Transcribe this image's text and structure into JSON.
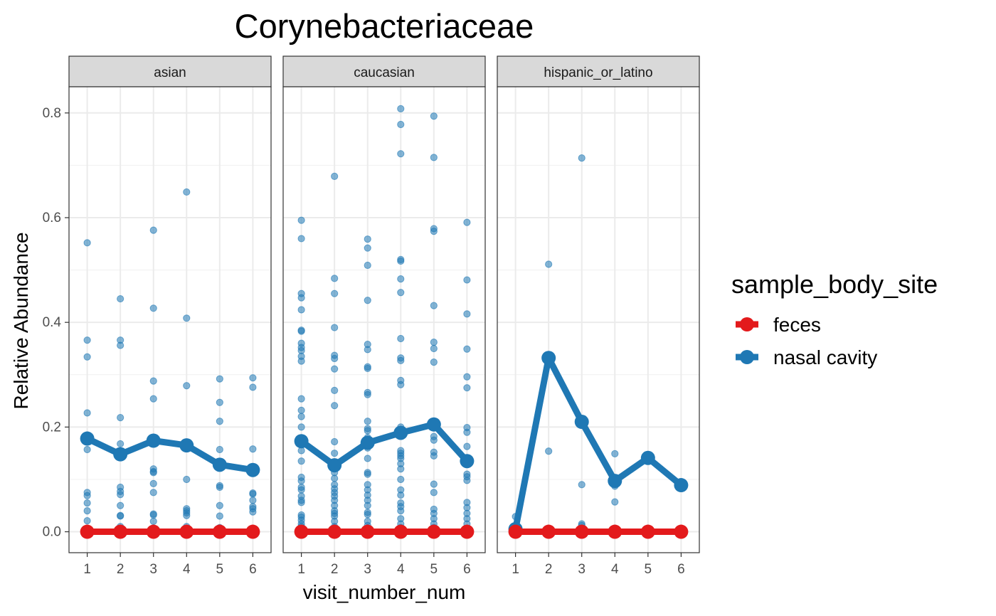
{
  "chart_data": {
    "type": "line",
    "title": "Corynebacteriaceae",
    "xlabel": "visit_number_num",
    "ylabel": "Relative Abundance",
    "x_ticks": [
      1,
      2,
      3,
      4,
      5,
      6
    ],
    "y_ticks": [
      "0.0",
      "0.2",
      "0.4",
      "0.6",
      "0.8"
    ],
    "ylim": [
      -0.04,
      0.85
    ],
    "xlim": [
      0.45,
      6.55
    ],
    "grid": true,
    "legend": {
      "title": "sample_body_site",
      "position": "right",
      "entries": [
        {
          "label": "feces",
          "color": "#E31A1C"
        },
        {
          "label": "nasal cavity",
          "color": "#1F78B4"
        }
      ]
    },
    "panels": [
      {
        "facet": "asian",
        "series": [
          {
            "name": "feces",
            "color": "#E31A1C",
            "x": [
              1,
              2,
              3,
              4,
              5,
              6
            ],
            "y": [
              0,
              0,
              0,
              0,
              0,
              0
            ]
          },
          {
            "name": "nasal cavity",
            "color": "#1F78B4",
            "x": [
              1,
              2,
              3,
              4,
              5,
              6
            ],
            "y": [
              0.178,
              0.148,
              0.174,
              0.165,
              0.128,
              0.118
            ]
          }
        ],
        "points": [
          [
            1,
            0.552
          ],
          [
            1,
            0.366
          ],
          [
            1,
            0.334
          ],
          [
            1,
            0.227
          ],
          [
            1,
            0.157
          ],
          [
            1,
            0.075
          ],
          [
            1,
            0.069
          ],
          [
            1,
            0.055
          ],
          [
            1,
            0.04
          ],
          [
            1,
            0.021
          ],
          [
            1,
            0.004
          ],
          [
            2,
            0.445
          ],
          [
            2,
            0.366
          ],
          [
            2,
            0.356
          ],
          [
            2,
            0.218
          ],
          [
            2,
            0.168
          ],
          [
            2,
            0.085
          ],
          [
            2,
            0.077
          ],
          [
            2,
            0.071
          ],
          [
            2,
            0.05
          ],
          [
            2,
            0.031
          ],
          [
            2,
            0.03
          ],
          [
            2,
            0.01
          ],
          [
            3,
            0.576
          ],
          [
            3,
            0.427
          ],
          [
            3,
            0.288
          ],
          [
            3,
            0.254
          ],
          [
            3,
            0.12
          ],
          [
            3,
            0.115
          ],
          [
            3,
            0.113
          ],
          [
            3,
            0.092
          ],
          [
            3,
            0.075
          ],
          [
            3,
            0.034
          ],
          [
            3,
            0.032
          ],
          [
            3,
            0.02
          ],
          [
            4,
            0.649
          ],
          [
            4,
            0.408
          ],
          [
            4,
            0.279
          ],
          [
            4,
            0.1
          ],
          [
            4,
            0.044
          ],
          [
            4,
            0.04
          ],
          [
            4,
            0.036
          ],
          [
            4,
            0.031
          ],
          [
            4,
            0.01
          ],
          [
            5,
            0.292
          ],
          [
            5,
            0.247
          ],
          [
            5,
            0.211
          ],
          [
            5,
            0.157
          ],
          [
            5,
            0.088
          ],
          [
            5,
            0.085
          ],
          [
            5,
            0.05
          ],
          [
            5,
            0.03
          ],
          [
            5,
            0.008
          ],
          [
            6,
            0.294
          ],
          [
            6,
            0.276
          ],
          [
            6,
            0.158
          ],
          [
            6,
            0.074
          ],
          [
            6,
            0.072
          ],
          [
            6,
            0.06
          ],
          [
            6,
            0.048
          ],
          [
            6,
            0.044
          ],
          [
            6,
            0.038
          ],
          [
            6,
            0.005
          ]
        ]
      },
      {
        "facet": "caucasian",
        "series": [
          {
            "name": "feces",
            "color": "#E31A1C",
            "x": [
              1,
              2,
              3,
              4,
              5,
              6
            ],
            "y": [
              0,
              0,
              0,
              0,
              0,
              0
            ]
          },
          {
            "name": "nasal cavity",
            "color": "#1F78B4",
            "x": [
              1,
              2,
              3,
              4,
              5,
              6
            ],
            "y": [
              0.173,
              0.127,
              0.17,
              0.189,
              0.205,
              0.135
            ]
          }
        ],
        "points": [
          [
            1,
            0.595
          ],
          [
            1,
            0.56
          ],
          [
            1,
            0.455
          ],
          [
            1,
            0.447
          ],
          [
            1,
            0.424
          ],
          [
            1,
            0.385
          ],
          [
            1,
            0.383
          ],
          [
            1,
            0.36
          ],
          [
            1,
            0.352
          ],
          [
            1,
            0.346
          ],
          [
            1,
            0.335
          ],
          [
            1,
            0.326
          ],
          [
            1,
            0.254
          ],
          [
            1,
            0.232
          ],
          [
            1,
            0.22
          ],
          [
            1,
            0.2
          ],
          [
            1,
            0.172
          ],
          [
            1,
            0.155
          ],
          [
            1,
            0.135
          ],
          [
            1,
            0.104
          ],
          [
            1,
            0.097
          ],
          [
            1,
            0.085
          ],
          [
            1,
            0.08
          ],
          [
            1,
            0.068
          ],
          [
            1,
            0.06
          ],
          [
            1,
            0.056
          ],
          [
            1,
            0.032
          ],
          [
            1,
            0.028
          ],
          [
            1,
            0.022
          ],
          [
            1,
            0.015
          ],
          [
            1,
            0.01
          ],
          [
            1,
            0.005
          ],
          [
            2,
            0.679
          ],
          [
            2,
            0.484
          ],
          [
            2,
            0.455
          ],
          [
            2,
            0.39
          ],
          [
            2,
            0.337
          ],
          [
            2,
            0.331
          ],
          [
            2,
            0.311
          ],
          [
            2,
            0.27
          ],
          [
            2,
            0.241
          ],
          [
            2,
            0.172
          ],
          [
            2,
            0.15
          ],
          [
            2,
            0.113
          ],
          [
            2,
            0.102
          ],
          [
            2,
            0.09
          ],
          [
            2,
            0.082
          ],
          [
            2,
            0.075
          ],
          [
            2,
            0.068
          ],
          [
            2,
            0.06
          ],
          [
            2,
            0.05
          ],
          [
            2,
            0.04
          ],
          [
            2,
            0.035
          ],
          [
            2,
            0.03
          ],
          [
            2,
            0.02
          ],
          [
            2,
            0.01
          ],
          [
            3,
            0.559
          ],
          [
            3,
            0.542
          ],
          [
            3,
            0.509
          ],
          [
            3,
            0.442
          ],
          [
            3,
            0.358
          ],
          [
            3,
            0.348
          ],
          [
            3,
            0.315
          ],
          [
            3,
            0.312
          ],
          [
            3,
            0.266
          ],
          [
            3,
            0.262
          ],
          [
            3,
            0.211
          ],
          [
            3,
            0.197
          ],
          [
            3,
            0.193
          ],
          [
            3,
            0.18
          ],
          [
            3,
            0.16
          ],
          [
            3,
            0.14
          ],
          [
            3,
            0.113
          ],
          [
            3,
            0.11
          ],
          [
            3,
            0.09
          ],
          [
            3,
            0.08
          ],
          [
            3,
            0.07
          ],
          [
            3,
            0.06
          ],
          [
            3,
            0.05
          ],
          [
            3,
            0.037
          ],
          [
            3,
            0.033
          ],
          [
            3,
            0.02
          ],
          [
            3,
            0.012
          ],
          [
            4,
            0.808
          ],
          [
            4,
            0.778
          ],
          [
            4,
            0.722
          ],
          [
            4,
            0.52
          ],
          [
            4,
            0.517
          ],
          [
            4,
            0.483
          ],
          [
            4,
            0.457
          ],
          [
            4,
            0.369
          ],
          [
            4,
            0.332
          ],
          [
            4,
            0.327
          ],
          [
            4,
            0.289
          ],
          [
            4,
            0.281
          ],
          [
            4,
            0.2
          ],
          [
            4,
            0.19
          ],
          [
            4,
            0.155
          ],
          [
            4,
            0.15
          ],
          [
            4,
            0.145
          ],
          [
            4,
            0.14
          ],
          [
            4,
            0.13
          ],
          [
            4,
            0.12
          ],
          [
            4,
            0.1
          ],
          [
            4,
            0.08
          ],
          [
            4,
            0.07
          ],
          [
            4,
            0.055
          ],
          [
            4,
            0.048
          ],
          [
            4,
            0.04
          ],
          [
            4,
            0.025
          ],
          [
            4,
            0.015
          ],
          [
            4,
            0.008
          ],
          [
            5,
            0.794
          ],
          [
            5,
            0.715
          ],
          [
            5,
            0.579
          ],
          [
            5,
            0.574
          ],
          [
            5,
            0.432
          ],
          [
            5,
            0.362
          ],
          [
            5,
            0.35
          ],
          [
            5,
            0.324
          ],
          [
            5,
            0.182
          ],
          [
            5,
            0.175
          ],
          [
            5,
            0.152
          ],
          [
            5,
            0.145
          ],
          [
            5,
            0.091
          ],
          [
            5,
            0.075
          ],
          [
            5,
            0.043
          ],
          [
            5,
            0.035
          ],
          [
            5,
            0.025
          ],
          [
            5,
            0.015
          ],
          [
            5,
            0.008
          ],
          [
            6,
            0.591
          ],
          [
            6,
            0.481
          ],
          [
            6,
            0.416
          ],
          [
            6,
            0.349
          ],
          [
            6,
            0.296
          ],
          [
            6,
            0.275
          ],
          [
            6,
            0.199
          ],
          [
            6,
            0.19
          ],
          [
            6,
            0.163
          ],
          [
            6,
            0.11
          ],
          [
            6,
            0.105
          ],
          [
            6,
            0.098
          ],
          [
            6,
            0.056
          ],
          [
            6,
            0.046
          ],
          [
            6,
            0.035
          ],
          [
            6,
            0.025
          ],
          [
            6,
            0.015
          ],
          [
            6,
            0.005
          ]
        ]
      },
      {
        "facet": "hispanic_or_latino",
        "series": [
          {
            "name": "feces",
            "color": "#E31A1C",
            "x": [
              1,
              2,
              3,
              4,
              5,
              6
            ],
            "y": [
              0,
              0,
              0,
              0,
              0,
              0
            ]
          },
          {
            "name": "nasal cavity",
            "color": "#1F78B4",
            "x": [
              1,
              2,
              3,
              4,
              5,
              6
            ],
            "y": [
              0.005,
              0.332,
              0.21,
              0.097,
              0.141,
              0.089
            ]
          }
        ],
        "points": [
          [
            1,
            0.029
          ],
          [
            1,
            0.003
          ],
          [
            2,
            0.511
          ],
          [
            2,
            0.154
          ],
          [
            2,
            0.002
          ],
          [
            3,
            0.714
          ],
          [
            3,
            0.09
          ],
          [
            3,
            0.015
          ],
          [
            3,
            0.012
          ],
          [
            4,
            0.149
          ],
          [
            4,
            0.087
          ],
          [
            4,
            0.057
          ],
          [
            5,
            0.002
          ],
          [
            6,
            0.002
          ]
        ]
      }
    ]
  }
}
